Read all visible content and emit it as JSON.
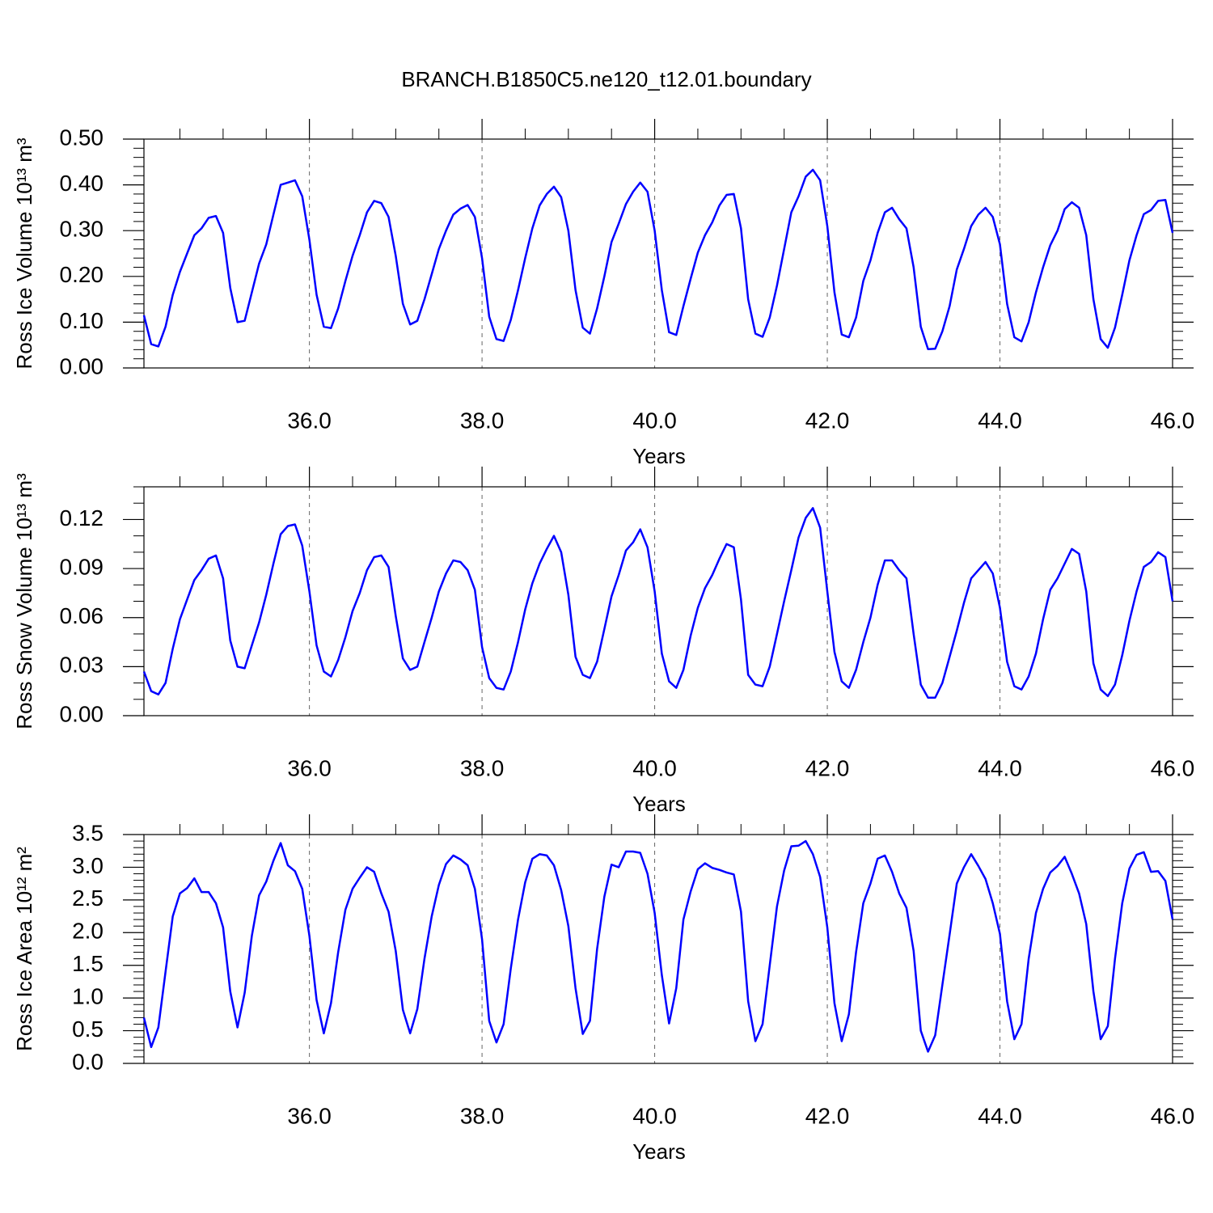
{
  "chart_data": [
    {
      "type": "line",
      "title": "BRANCH.B1850C5.ne120_t12.01.boundary",
      "xlabel": "Years",
      "ylabel": "Ross Ice Volume 10¹³ m³",
      "xlim": [
        34.083,
        46
      ],
      "xticks": [
        {
          "value": 36,
          "label": "36.0"
        },
        {
          "value": 38,
          "label": "38.0"
        },
        {
          "value": 40,
          "label": "40.0"
        },
        {
          "value": 42,
          "label": "42.0"
        },
        {
          "value": 44,
          "label": "44.0"
        },
        {
          "value": 46,
          "label": "46.0"
        }
      ],
      "xminorticks": [
        34.5,
        35,
        35.5,
        36.5,
        37,
        37.5,
        38.5,
        39,
        39.5,
        40.5,
        41,
        41.5,
        42.5,
        43,
        43.5,
        44.5,
        45,
        45.5
      ],
      "ylim": [
        0,
        0.5
      ],
      "yticks": [
        {
          "value": 0,
          "label": "0.00"
        },
        {
          "value": 0.1,
          "label": "0.10"
        },
        {
          "value": 0.2,
          "label": "0.20"
        },
        {
          "value": 0.3,
          "label": "0.30"
        },
        {
          "value": 0.4,
          "label": "0.40"
        },
        {
          "value": 0.5,
          "label": "0.50"
        }
      ],
      "yminorticks": [
        0.02,
        0.04,
        0.06,
        0.08,
        0.12,
        0.14,
        0.16,
        0.18,
        0.22,
        0.24,
        0.26,
        0.28,
        0.32,
        0.34,
        0.36,
        0.38,
        0.42,
        0.44,
        0.46,
        0.48
      ],
      "grid": true,
      "x": [
        34.083,
        34.167,
        34.25,
        34.333,
        34.417,
        34.5,
        34.583,
        34.667,
        34.75,
        34.833,
        34.917,
        35,
        35.083,
        35.167,
        35.25,
        35.333,
        35.417,
        35.5,
        35.583,
        35.667,
        35.75,
        35.833,
        35.917,
        36,
        36.083,
        36.167,
        36.25,
        36.333,
        36.417,
        36.5,
        36.583,
        36.667,
        36.75,
        36.833,
        36.917,
        37,
        37.083,
        37.167,
        37.25,
        37.333,
        37.417,
        37.5,
        37.583,
        37.667,
        37.75,
        37.833,
        37.917,
        38,
        38.083,
        38.167,
        38.25,
        38.333,
        38.417,
        38.5,
        38.583,
        38.667,
        38.75,
        38.833,
        38.917,
        39,
        39.083,
        39.167,
        39.25,
        39.333,
        39.417,
        39.5,
        39.583,
        39.667,
        39.75,
        39.833,
        39.917,
        40,
        40.083,
        40.167,
        40.25,
        40.333,
        40.417,
        40.5,
        40.583,
        40.667,
        40.75,
        40.833,
        40.917,
        41,
        41.083,
        41.167,
        41.25,
        41.333,
        41.417,
        41.5,
        41.583,
        41.667,
        41.75,
        41.833,
        41.917,
        42,
        42.083,
        42.167,
        42.25,
        42.333,
        42.417,
        42.5,
        42.583,
        42.667,
        42.75,
        42.833,
        42.917,
        43,
        43.083,
        43.167,
        43.25,
        43.333,
        43.417,
        43.5,
        43.583,
        43.667,
        43.75,
        43.833,
        43.917,
        44,
        44.083,
        44.167,
        44.25,
        44.333,
        44.417,
        44.5,
        44.583,
        44.667,
        44.75,
        44.833,
        44.917,
        45,
        45.083,
        45.167,
        45.25,
        45.333,
        45.417,
        45.5,
        45.583,
        45.667,
        45.75,
        45.833,
        45.917,
        46
      ],
      "series": [
        {
          "color": "#0000ff",
          "values": [
            0.115,
            0.052,
            0.047,
            0.09,
            0.16,
            0.21,
            0.25,
            0.29,
            0.305,
            0.328,
            0.332,
            0.295,
            0.175,
            0.1,
            0.103,
            0.165,
            0.228,
            0.27,
            0.335,
            0.4,
            0.405,
            0.41,
            0.375,
            0.28,
            0.16,
            0.09,
            0.087,
            0.13,
            0.19,
            0.245,
            0.29,
            0.34,
            0.365,
            0.36,
            0.33,
            0.245,
            0.14,
            0.095,
            0.103,
            0.15,
            0.205,
            0.26,
            0.3,
            0.335,
            0.348,
            0.356,
            0.33,
            0.24,
            0.112,
            0.063,
            0.059,
            0.105,
            0.17,
            0.24,
            0.305,
            0.355,
            0.38,
            0.396,
            0.373,
            0.3,
            0.17,
            0.088,
            0.075,
            0.13,
            0.2,
            0.275,
            0.315,
            0.358,
            0.385,
            0.405,
            0.385,
            0.3,
            0.17,
            0.078,
            0.072,
            0.135,
            0.195,
            0.252,
            0.29,
            0.318,
            0.355,
            0.378,
            0.38,
            0.305,
            0.15,
            0.075,
            0.068,
            0.11,
            0.18,
            0.26,
            0.34,
            0.375,
            0.418,
            0.433,
            0.41,
            0.31,
            0.165,
            0.073,
            0.067,
            0.11,
            0.19,
            0.235,
            0.295,
            0.34,
            0.35,
            0.325,
            0.305,
            0.22,
            0.09,
            0.041,
            0.042,
            0.08,
            0.135,
            0.215,
            0.26,
            0.31,
            0.335,
            0.35,
            0.33,
            0.27,
            0.14,
            0.067,
            0.058,
            0.1,
            0.165,
            0.22,
            0.268,
            0.3,
            0.347,
            0.362,
            0.35,
            0.29,
            0.15,
            0.063,
            0.044,
            0.088,
            0.16,
            0.235,
            0.29,
            0.336,
            0.345,
            0.365,
            0.367,
            0.295
          ]
        }
      ]
    },
    {
      "type": "line",
      "xlabel": "Years",
      "ylabel": "Ross Snow Volume 10¹³ m³",
      "xlim": [
        34.083,
        46
      ],
      "xticks": [
        {
          "value": 36,
          "label": "36.0"
        },
        {
          "value": 38,
          "label": "38.0"
        },
        {
          "value": 40,
          "label": "40.0"
        },
        {
          "value": 42,
          "label": "42.0"
        },
        {
          "value": 44,
          "label": "44.0"
        },
        {
          "value": 46,
          "label": "46.0"
        }
      ],
      "xminorticks": [
        34.5,
        35,
        35.5,
        36.5,
        37,
        37.5,
        38.5,
        39,
        39.5,
        40.5,
        41,
        41.5,
        42.5,
        43,
        43.5,
        44.5,
        45,
        45.5
      ],
      "ylim": [
        0,
        0.14
      ],
      "yticks": [
        {
          "value": 0,
          "label": "0.00"
        },
        {
          "value": 0.03,
          "label": "0.03"
        },
        {
          "value": 0.06,
          "label": "0.06"
        },
        {
          "value": 0.09,
          "label": "0.09"
        },
        {
          "value": 0.12,
          "label": "0.12"
        }
      ],
      "yminorticks": [
        0.01,
        0.02,
        0.04,
        0.05,
        0.07,
        0.08,
        0.1,
        0.11,
        0.13,
        0.14
      ],
      "grid": true,
      "x": [
        34.083,
        34.167,
        34.25,
        34.333,
        34.417,
        34.5,
        34.583,
        34.667,
        34.75,
        34.833,
        34.917,
        35,
        35.083,
        35.167,
        35.25,
        35.333,
        35.417,
        35.5,
        35.583,
        35.667,
        35.75,
        35.833,
        35.917,
        36,
        36.083,
        36.167,
        36.25,
        36.333,
        36.417,
        36.5,
        36.583,
        36.667,
        36.75,
        36.833,
        36.917,
        37,
        37.083,
        37.167,
        37.25,
        37.333,
        37.417,
        37.5,
        37.583,
        37.667,
        37.75,
        37.833,
        37.917,
        38,
        38.083,
        38.167,
        38.25,
        38.333,
        38.417,
        38.5,
        38.583,
        38.667,
        38.75,
        38.833,
        38.917,
        39,
        39.083,
        39.167,
        39.25,
        39.333,
        39.417,
        39.5,
        39.583,
        39.667,
        39.75,
        39.833,
        39.917,
        40,
        40.083,
        40.167,
        40.25,
        40.333,
        40.417,
        40.5,
        40.583,
        40.667,
        40.75,
        40.833,
        40.917,
        41,
        41.083,
        41.167,
        41.25,
        41.333,
        41.417,
        41.5,
        41.583,
        41.667,
        41.75,
        41.833,
        41.917,
        42,
        42.083,
        42.167,
        42.25,
        42.333,
        42.417,
        42.5,
        42.583,
        42.667,
        42.75,
        42.833,
        42.917,
        43,
        43.083,
        43.167,
        43.25,
        43.333,
        43.417,
        43.5,
        43.583,
        43.667,
        43.75,
        43.833,
        43.917,
        44,
        44.083,
        44.167,
        44.25,
        44.333,
        44.417,
        44.5,
        44.583,
        44.667,
        44.75,
        44.833,
        44.917,
        45,
        45.083,
        45.167,
        45.25,
        45.333,
        45.417,
        45.5,
        45.583,
        45.667,
        45.75,
        45.833,
        45.917,
        46
      ],
      "series": [
        {
          "color": "#0000ff",
          "values": [
            0.027,
            0.015,
            0.013,
            0.02,
            0.041,
            0.059,
            0.071,
            0.083,
            0.089,
            0.096,
            0.098,
            0.084,
            0.046,
            0.03,
            0.029,
            0.043,
            0.057,
            0.074,
            0.093,
            0.111,
            0.116,
            0.117,
            0.104,
            0.076,
            0.043,
            0.027,
            0.024,
            0.034,
            0.048,
            0.064,
            0.075,
            0.089,
            0.097,
            0.098,
            0.091,
            0.061,
            0.035,
            0.028,
            0.03,
            0.045,
            0.06,
            0.076,
            0.087,
            0.095,
            0.094,
            0.089,
            0.077,
            0.042,
            0.023,
            0.017,
            0.016,
            0.027,
            0.045,
            0.065,
            0.081,
            0.093,
            0.102,
            0.11,
            0.1,
            0.074,
            0.036,
            0.025,
            0.023,
            0.033,
            0.053,
            0.073,
            0.086,
            0.101,
            0.106,
            0.114,
            0.103,
            0.076,
            0.038,
            0.021,
            0.017,
            0.028,
            0.049,
            0.066,
            0.078,
            0.086,
            0.096,
            0.105,
            0.103,
            0.071,
            0.025,
            0.019,
            0.018,
            0.03,
            0.05,
            0.07,
            0.089,
            0.109,
            0.121,
            0.127,
            0.115,
            0.076,
            0.039,
            0.021,
            0.017,
            0.028,
            0.045,
            0.06,
            0.08,
            0.095,
            0.095,
            0.089,
            0.084,
            0.05,
            0.019,
            0.011,
            0.011,
            0.02,
            0.036,
            0.052,
            0.069,
            0.084,
            0.089,
            0.094,
            0.087,
            0.066,
            0.033,
            0.018,
            0.016,
            0.024,
            0.038,
            0.059,
            0.077,
            0.084,
            0.093,
            0.102,
            0.099,
            0.076,
            0.032,
            0.016,
            0.012,
            0.019,
            0.037,
            0.058,
            0.076,
            0.091,
            0.094,
            0.1,
            0.097,
            0.07
          ]
        }
      ]
    },
    {
      "type": "line",
      "xlabel": "Years",
      "ylabel": "Ross Ice Area 10¹² m²",
      "xlim": [
        34.083,
        46
      ],
      "xticks": [
        {
          "value": 36,
          "label": "36.0"
        },
        {
          "value": 38,
          "label": "38.0"
        },
        {
          "value": 40,
          "label": "40.0"
        },
        {
          "value": 42,
          "label": "42.0"
        },
        {
          "value": 44,
          "label": "44.0"
        },
        {
          "value": 46,
          "label": "46.0"
        }
      ],
      "xminorticks": [
        34.5,
        35,
        35.5,
        36.5,
        37,
        37.5,
        38.5,
        39,
        39.5,
        40.5,
        41,
        41.5,
        42.5,
        43,
        43.5,
        44.5,
        45,
        45.5
      ],
      "ylim": [
        0,
        3.5
      ],
      "yticks": [
        {
          "value": 0,
          "label": "0.0"
        },
        0.5,
        {
          "value": 1,
          "label": "1.0"
        },
        1.5,
        {
          "value": 2,
          "label": "2.0"
        },
        2.5,
        {
          "value": 3,
          "label": "3.0"
        },
        3.5
      ],
      "yminorticks": [
        0.1,
        0.2,
        0.3,
        0.4,
        0.6,
        0.7,
        0.8,
        0.9,
        1.1,
        1.2,
        1.3,
        1.4,
        1.6,
        1.7,
        1.8,
        1.9,
        2.1,
        2.2,
        2.3,
        2.4,
        2.6,
        2.7,
        2.8,
        2.9,
        3.1,
        3.2,
        3.3,
        3.4
      ],
      "grid": true,
      "x": [
        34.083,
        34.167,
        34.25,
        34.333,
        34.417,
        34.5,
        34.583,
        34.667,
        34.75,
        34.833,
        34.917,
        35,
        35.083,
        35.167,
        35.25,
        35.333,
        35.417,
        35.5,
        35.583,
        35.667,
        35.75,
        35.833,
        35.917,
        36,
        36.083,
        36.167,
        36.25,
        36.333,
        36.417,
        36.5,
        36.583,
        36.667,
        36.75,
        36.833,
        36.917,
        37,
        37.083,
        37.167,
        37.25,
        37.333,
        37.417,
        37.5,
        37.583,
        37.667,
        37.75,
        37.833,
        37.917,
        38,
        38.083,
        38.167,
        38.25,
        38.333,
        38.417,
        38.5,
        38.583,
        38.667,
        38.75,
        38.833,
        38.917,
        39,
        39.083,
        39.167,
        39.25,
        39.333,
        39.417,
        39.5,
        39.583,
        39.667,
        39.75,
        39.833,
        39.917,
        40,
        40.083,
        40.167,
        40.25,
        40.333,
        40.417,
        40.5,
        40.583,
        40.667,
        40.75,
        40.833,
        40.917,
        41,
        41.083,
        41.167,
        41.25,
        41.333,
        41.417,
        41.5,
        41.583,
        41.667,
        41.75,
        41.833,
        41.917,
        42,
        42.083,
        42.167,
        42.25,
        42.333,
        42.417,
        42.5,
        42.583,
        42.667,
        42.75,
        42.833,
        42.917,
        43,
        43.083,
        43.167,
        43.25,
        43.333,
        43.417,
        43.5,
        43.583,
        43.667,
        43.75,
        43.833,
        43.917,
        44,
        44.083,
        44.167,
        44.25,
        44.333,
        44.417,
        44.5,
        44.583,
        44.667,
        44.75,
        44.833,
        44.917,
        45,
        45.083,
        45.167,
        45.25,
        45.333,
        45.417,
        45.5,
        45.583,
        45.667,
        45.75,
        45.833,
        45.917,
        46
      ],
      "series": [
        {
          "color": "#0000ff",
          "values": [
            0.7,
            0.25,
            0.55,
            1.4,
            2.25,
            2.6,
            2.68,
            2.83,
            2.62,
            2.62,
            2.45,
            2.08,
            1.1,
            0.55,
            1.08,
            1.95,
            2.57,
            2.78,
            3.1,
            3.37,
            3.03,
            2.94,
            2.67,
            1.95,
            0.97,
            0.46,
            0.92,
            1.7,
            2.35,
            2.67,
            2.84,
            3,
            2.93,
            2.6,
            2.32,
            1.72,
            0.82,
            0.46,
            0.83,
            1.6,
            2.25,
            2.73,
            3.05,
            3.18,
            3.12,
            3.03,
            2.67,
            1.9,
            0.65,
            0.32,
            0.6,
            1.45,
            2.2,
            2.77,
            3.13,
            3.2,
            3.18,
            3.03,
            2.65,
            2.1,
            1.15,
            0.45,
            0.65,
            1.75,
            2.55,
            3.04,
            3,
            3.24,
            3.24,
            3.22,
            2.9,
            2.3,
            1.35,
            0.61,
            1.15,
            2.2,
            2.63,
            2.97,
            3.06,
            2.99,
            2.96,
            2.92,
            2.89,
            2.32,
            0.95,
            0.34,
            0.6,
            1.5,
            2.4,
            2.95,
            3.32,
            3.33,
            3.4,
            3.2,
            2.85,
            2.08,
            0.92,
            0.34,
            0.75,
            1.7,
            2.45,
            2.75,
            3.13,
            3.18,
            2.93,
            2.6,
            2.38,
            1.72,
            0.5,
            0.18,
            0.43,
            1.2,
            1.97,
            2.75,
            3,
            3.2,
            3.02,
            2.82,
            2.45,
            1.98,
            0.95,
            0.37,
            0.6,
            1.6,
            2.3,
            2.67,
            2.92,
            3.02,
            3.16,
            2.9,
            2.6,
            2.13,
            1.1,
            0.37,
            0.57,
            1.6,
            2.45,
            2.98,
            3.19,
            3.23,
            2.93,
            2.94,
            2.79,
            2.2
          ]
        }
      ]
    }
  ]
}
